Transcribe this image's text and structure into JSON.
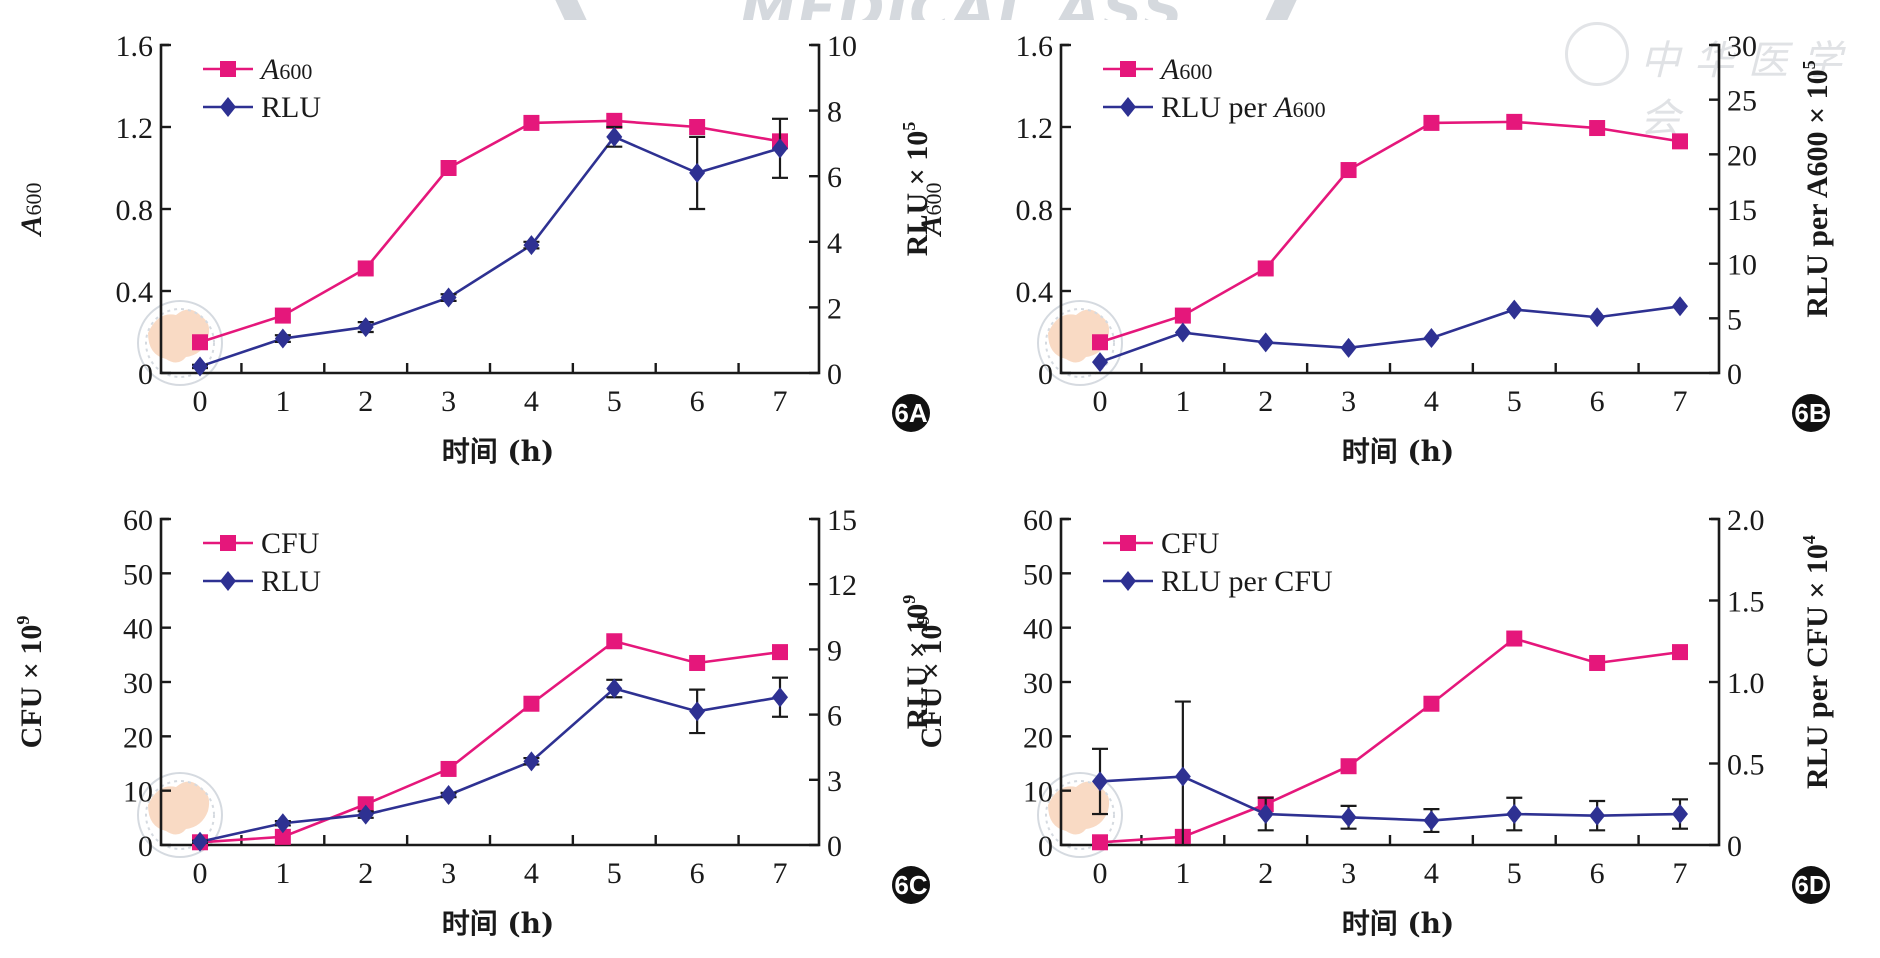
{
  "watermark": {
    "top_text": "MEDICAL ASS",
    "right_text": "中华医学会"
  },
  "colors": {
    "primary_series": "#e5177b",
    "secondary_series": "#2e3192",
    "axis": "#1a1a1a"
  },
  "chart_data": [
    {
      "panel": "6A",
      "type": "line",
      "x": [
        0,
        1,
        2,
        3,
        4,
        5,
        6,
        7
      ],
      "xlabel": "时间 (h)",
      "xticks": [
        "0",
        "1",
        "2",
        "3",
        "4",
        "5",
        "6",
        "7"
      ],
      "y_left": {
        "label_main": "A",
        "label_sub": "600",
        "label_italic": true,
        "range": [
          0,
          1.6
        ],
        "ticks": [
          "0",
          "0.4",
          "0.8",
          "1.2",
          "1.6"
        ],
        "tick_values": [
          0,
          0.4,
          0.8,
          1.2,
          1.6
        ]
      },
      "y_right": {
        "label_main": "RLU × 10",
        "label_sup": "5",
        "range": [
          0,
          10
        ],
        "ticks": [
          "0",
          "2",
          "4",
          "6",
          "8",
          "10"
        ],
        "tick_values": [
          0,
          2,
          4,
          6,
          8,
          10
        ]
      },
      "series": [
        {
          "name": "A600",
          "legend_main": "A",
          "legend_sub": "600",
          "legend_italic": true,
          "marker": "square",
          "axis": "left",
          "color": "#e5177b",
          "values": [
            0.15,
            0.28,
            0.51,
            1.0,
            1.22,
            1.23,
            1.2,
            1.13
          ]
        },
        {
          "name": "RLU",
          "legend_main": "RLU",
          "marker": "diamond",
          "axis": "right",
          "color": "#2e3192",
          "values": [
            0.2,
            1.05,
            1.4,
            2.3,
            3.9,
            7.2,
            6.1,
            6.85
          ],
          "errors": [
            0.05,
            0.1,
            0.15,
            0.1,
            0.1,
            0.3,
            1.1,
            0.9
          ]
        }
      ],
      "legend_position": "top-left"
    },
    {
      "panel": "6B",
      "type": "line",
      "x": [
        0,
        1,
        2,
        3,
        4,
        5,
        6,
        7
      ],
      "xlabel": "时间 (h)",
      "xticks": [
        "0",
        "1",
        "2",
        "3",
        "4",
        "5",
        "6",
        "7"
      ],
      "y_left": {
        "label_main": "A",
        "label_sub": "600",
        "label_italic": true,
        "range": [
          0,
          1.6
        ],
        "ticks": [
          "0",
          "0.4",
          "0.8",
          "1.2",
          "1.6"
        ],
        "tick_values": [
          0,
          0.4,
          0.8,
          1.2,
          1.6
        ]
      },
      "y_right": {
        "label_main": "RLU per A600 × 10",
        "label_sup": "5",
        "range": [
          0,
          30
        ],
        "ticks": [
          "0",
          "5",
          "10",
          "15",
          "20",
          "25",
          "30"
        ],
        "tick_values": [
          0,
          5,
          10,
          15,
          20,
          25,
          30
        ]
      },
      "series": [
        {
          "name": "A600",
          "legend_main": "A",
          "legend_sub": "600",
          "legend_italic": true,
          "marker": "square",
          "axis": "left",
          "color": "#e5177b",
          "values": [
            0.15,
            0.28,
            0.51,
            0.99,
            1.22,
            1.225,
            1.195,
            1.13
          ]
        },
        {
          "name": "RLU per A600",
          "legend_main": "RLU per ",
          "legend_tail_main": "A",
          "legend_tail_sub": "600",
          "marker": "diamond",
          "axis": "right",
          "color": "#2e3192",
          "values": [
            1.0,
            3.7,
            2.8,
            2.3,
            3.2,
            5.8,
            5.1,
            6.1
          ]
        }
      ],
      "legend_position": "top-left"
    },
    {
      "panel": "6C",
      "type": "line",
      "x": [
        0,
        1,
        2,
        3,
        4,
        5,
        6,
        7
      ],
      "xlabel": "时间 (h)",
      "xticks": [
        "0",
        "1",
        "2",
        "3",
        "4",
        "5",
        "6",
        "7"
      ],
      "y_left": {
        "label_main": "CFU × 10",
        "label_sup": "9",
        "range": [
          0,
          60
        ],
        "ticks": [
          "0",
          "10",
          "20",
          "30",
          "40",
          "50",
          "60"
        ],
        "tick_values": [
          0,
          10,
          20,
          30,
          40,
          50,
          60
        ]
      },
      "y_right": {
        "label_main": "RLU × 10",
        "label_sup": "9",
        "range": [
          0,
          15
        ],
        "ticks": [
          "0",
          "3",
          "6",
          "9",
          "12",
          "15"
        ],
        "tick_values": [
          0,
          3,
          6,
          9,
          12,
          15
        ]
      },
      "series": [
        {
          "name": "CFU",
          "legend_main": "CFU",
          "marker": "square",
          "axis": "left",
          "color": "#e5177b",
          "values": [
            0.5,
            1.5,
            7.5,
            14,
            26,
            37.5,
            33.5,
            35.5
          ]
        },
        {
          "name": "RLU",
          "legend_main": "RLU",
          "marker": "diamond",
          "axis": "right",
          "color": "#2e3192",
          "values": [
            0.15,
            1.0,
            1.4,
            2.3,
            3.85,
            7.2,
            6.15,
            6.8
          ],
          "errors": [
            0.05,
            0.1,
            0.15,
            0.1,
            0.15,
            0.4,
            1.0,
            0.9
          ]
        }
      ],
      "legend_position": "top-left"
    },
    {
      "panel": "6D",
      "type": "line",
      "x": [
        0,
        1,
        2,
        3,
        4,
        5,
        6,
        7
      ],
      "xlabel": "时间 (h)",
      "xticks": [
        "0",
        "1",
        "2",
        "3",
        "4",
        "5",
        "6",
        "7"
      ],
      "y_left": {
        "label_main": "CFU × 10",
        "label_sup": "9",
        "range": [
          0,
          60
        ],
        "ticks": [
          "0",
          "10",
          "20",
          "30",
          "40",
          "50",
          "60"
        ],
        "tick_values": [
          0,
          10,
          20,
          30,
          40,
          50,
          60
        ]
      },
      "y_right": {
        "label_main": "RLU per CFU × 10",
        "label_sup": "4",
        "range": [
          0,
          2.0
        ],
        "ticks": [
          "0",
          "0.5",
          "1.0",
          "1.5",
          "2.0"
        ],
        "tick_values": [
          0,
          0.5,
          1.0,
          1.5,
          2.0
        ]
      },
      "series": [
        {
          "name": "CFU",
          "legend_main": "CFU",
          "marker": "square",
          "axis": "left",
          "color": "#e5177b",
          "values": [
            0.5,
            1.5,
            7.5,
            14.5,
            26,
            38,
            33.5,
            35.5
          ]
        },
        {
          "name": "RLU per CFU",
          "legend_main": "RLU per CFU",
          "marker": "diamond",
          "axis": "right",
          "color": "#2e3192",
          "values": [
            0.39,
            0.42,
            0.19,
            0.17,
            0.15,
            0.19,
            0.18,
            0.19
          ],
          "errors": [
            0.2,
            0.46,
            0.1,
            0.07,
            0.07,
            0.1,
            0.09,
            0.09
          ]
        }
      ],
      "legend_position": "top-left"
    }
  ]
}
